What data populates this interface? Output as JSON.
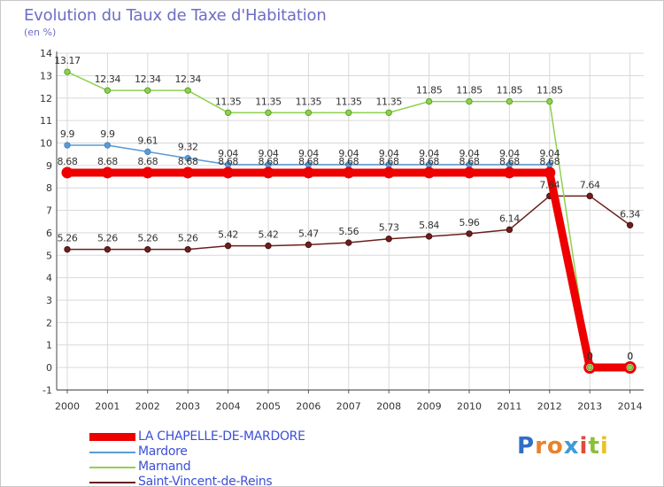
{
  "chart_data": {
    "type": "line",
    "title": "Evolution du Taux de Taxe d'Habitation",
    "unit_label": "(en %)",
    "x": [
      "2000",
      "2001",
      "2002",
      "2003",
      "2004",
      "2005",
      "2006",
      "2007",
      "2008",
      "2009",
      "2010",
      "2011",
      "2012",
      "2013",
      "2014"
    ],
    "ylim": [
      -1,
      14
    ],
    "yticks": [
      -1,
      0,
      1,
      2,
      3,
      4,
      5,
      6,
      7,
      8,
      9,
      10,
      11,
      12,
      13,
      14
    ],
    "grid": true,
    "series": [
      {
        "name": "LA CHAPELLE-DE-MARDORE",
        "color": "#ee0000",
        "values": [
          8.68,
          8.68,
          8.68,
          8.68,
          8.68,
          8.68,
          8.68,
          8.68,
          8.68,
          8.68,
          8.68,
          8.68,
          8.68,
          0,
          0
        ],
        "labels": [
          "8.68",
          "8.68",
          "8.68",
          "8.68",
          "8.68",
          "8.68",
          "8.68",
          "8.68",
          "8.68",
          "8.68",
          "8.68",
          "8.68",
          "8.68",
          "0",
          "0"
        ]
      },
      {
        "name": "Mardore",
        "color": "#5b9bd5",
        "values": [
          9.9,
          9.9,
          9.61,
          9.32,
          9.04,
          9.04,
          9.04,
          9.04,
          9.04,
          9.04,
          9.04,
          9.04,
          9.04,
          0,
          0
        ],
        "labels": [
          "9.9",
          "9.9",
          "9.61",
          "9.32",
          "9.04",
          "9.04",
          "9.04",
          "9.04",
          "9.04",
          "9.04",
          "9.04",
          "9.04",
          "9.04",
          "0",
          "0"
        ]
      },
      {
        "name": "Marnand",
        "color": "#8fd14f",
        "values": [
          13.17,
          12.34,
          12.34,
          12.34,
          11.35,
          11.35,
          11.35,
          11.35,
          11.35,
          11.85,
          11.85,
          11.85,
          11.85,
          0,
          0
        ],
        "labels": [
          "13.17",
          "12.34",
          "12.34",
          "12.34",
          "11.35",
          "11.35",
          "11.35",
          "11.35",
          "11.35",
          "11.85",
          "11.85",
          "11.85",
          "11.85",
          "0",
          "0"
        ]
      },
      {
        "name": "Saint-Vincent-de-Reins",
        "color": "#6b1f1f",
        "values": [
          5.26,
          5.26,
          5.26,
          5.26,
          5.42,
          5.42,
          5.47,
          5.56,
          5.73,
          5.84,
          5.96,
          6.14,
          7.64,
          7.64,
          6.34
        ],
        "labels": [
          "5.26",
          "5.26",
          "5.26",
          "5.26",
          "5.42",
          "5.42",
          "5.47",
          "5.56",
          "5.73",
          "5.84",
          "5.96",
          "6.14",
          "7.64",
          "7.64",
          "6.34"
        ]
      }
    ]
  },
  "logo": {
    "letters": [
      "P",
      "r",
      "o",
      "x",
      "i",
      "t",
      "i"
    ],
    "colors": [
      "#2f6fc4",
      "#e8832a",
      "#e8832a",
      "#3e9bd8",
      "#e14b3c",
      "#8bbf3a",
      "#e8c22a"
    ]
  }
}
